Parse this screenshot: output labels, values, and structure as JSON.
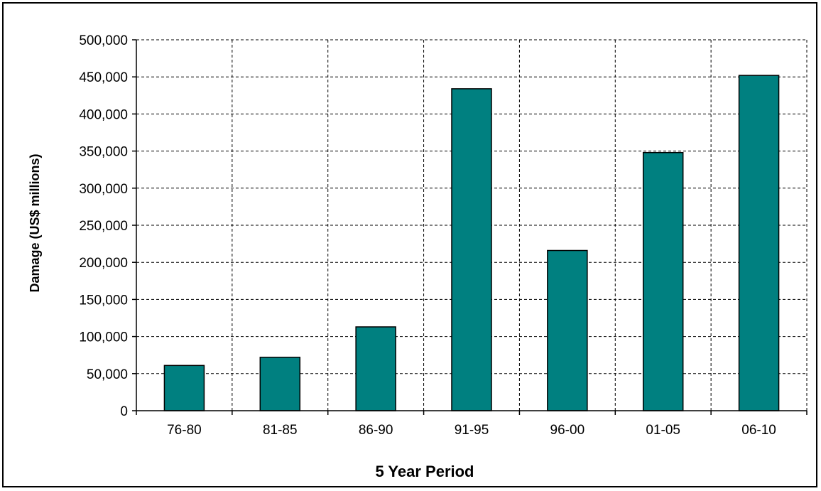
{
  "chart_data": {
    "type": "bar",
    "title": "",
    "xlabel": "5 Year Period",
    "ylabel": "Damage (US$ millions)",
    "categories": [
      "76-80",
      "81-85",
      "86-90",
      "91-95",
      "96-00",
      "01-05",
      "06-10"
    ],
    "values": [
      61000,
      72000,
      113000,
      434000,
      216000,
      348000,
      452000
    ],
    "ylim": [
      0,
      500000
    ],
    "yticks": [
      0,
      50000,
      100000,
      150000,
      200000,
      250000,
      300000,
      350000,
      400000,
      450000,
      500000
    ],
    "ytick_labels": [
      "0",
      "50,000",
      "100,000",
      "150,000",
      "200,000",
      "250,000",
      "300,000",
      "350,000",
      "400,000",
      "450,000",
      "500,000"
    ],
    "grid": true,
    "legend": "none",
    "colors": {
      "bar": "#008080",
      "bar_edge": "#000000",
      "grid": "#000000"
    }
  }
}
